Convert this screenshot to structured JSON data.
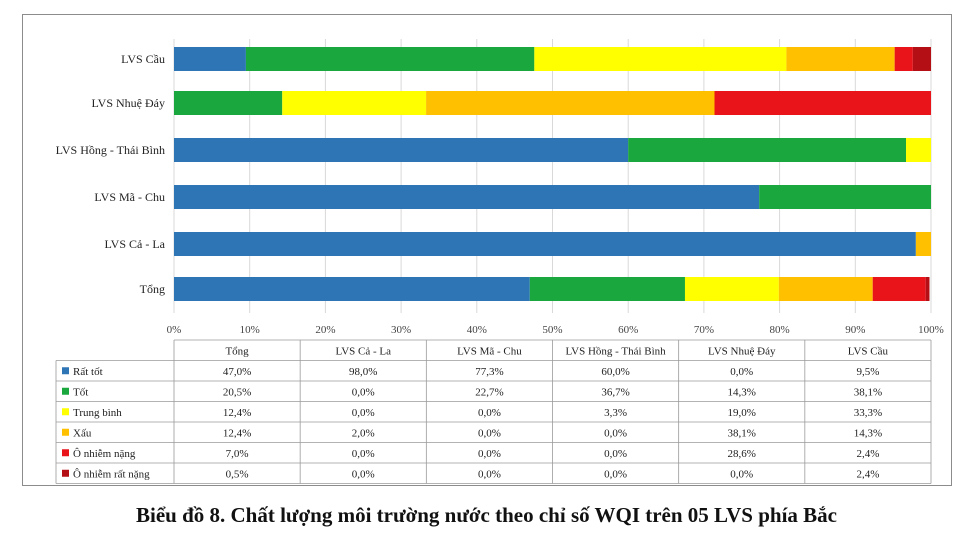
{
  "caption": "Biểu đồ 8. Chất lượng môi trường nước theo chỉ số WQI trên 05 LVS phía Bắc",
  "chart_data": {
    "type": "bar",
    "orientation": "horizontal",
    "stacked": true,
    "normalized": true,
    "categories": [
      "Tổng",
      "LVS Cả - La",
      "LVS Mã - Chu",
      "LVS Hồng - Thái Bình",
      "LVS Nhuệ Đáy",
      "LVS Cầu"
    ],
    "series": [
      {
        "name": "Rất tốt",
        "color": "#2e75b6",
        "values": [
          47.0,
          98.0,
          77.3,
          60.0,
          0.0,
          9.5
        ],
        "labels": [
          "47,0%",
          "98,0%",
          "77,3%",
          "60,0%",
          "0,0%",
          "9,5%"
        ]
      },
      {
        "name": "Tốt",
        "color": "#1aa83e",
        "values": [
          20.5,
          0.0,
          22.7,
          36.7,
          14.3,
          38.1
        ],
        "labels": [
          "20,5%",
          "0,0%",
          "22,7%",
          "36,7%",
          "14,3%",
          "38,1%"
        ]
      },
      {
        "name": "Trung bình",
        "color": "#ffff00",
        "values": [
          12.4,
          0.0,
          0.0,
          3.3,
          19.0,
          33.3
        ],
        "labels": [
          "12,4%",
          "0,0%",
          "0,0%",
          "3,3%",
          "19,0%",
          "33,3%"
        ]
      },
      {
        "name": "Xấu",
        "color": "#ffc000",
        "values": [
          12.4,
          2.0,
          0.0,
          0.0,
          38.1,
          14.3
        ],
        "labels": [
          "12,4%",
          "2,0%",
          "0,0%",
          "0,0%",
          "38,1%",
          "14,3%"
        ]
      },
      {
        "name": "Ô nhiễm nặng",
        "color": "#e8141a",
        "values": [
          7.0,
          0.0,
          0.0,
          0.0,
          28.6,
          2.4
        ],
        "labels": [
          "7,0%",
          "0,0%",
          "0,0%",
          "0,0%",
          "28,6%",
          "2,4%"
        ]
      },
      {
        "name": "Ô nhiễm rất nặng",
        "color": "#b40f14",
        "values": [
          0.5,
          0.0,
          0.0,
          0.0,
          0.0,
          2.4
        ],
        "labels": [
          "0,5%",
          "0,0%",
          "0,0%",
          "0,0%",
          "0,0%",
          "2,4%"
        ]
      }
    ],
    "x_ticks": [
      "0%",
      "10%",
      "20%",
      "30%",
      "40%",
      "50%",
      "60%",
      "70%",
      "80%",
      "90%",
      "100%"
    ],
    "xlim": [
      0,
      100
    ],
    "grid": "vertical",
    "legend": "data-table-below"
  }
}
